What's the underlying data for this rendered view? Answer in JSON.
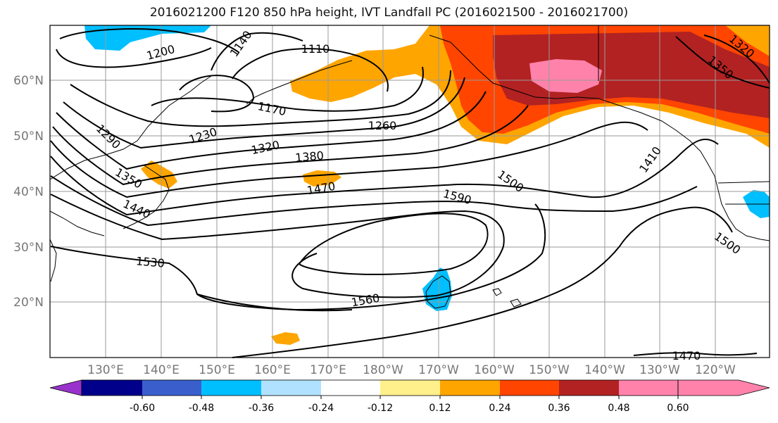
{
  "title": "2016021200 F120 850 hPa height, IVT Landfall PC (2016021500 - 2016021700)",
  "lat_labels": [
    "60°N",
    "50°N",
    "40°N",
    "30°N",
    "20°N"
  ],
  "lon_labels": [
    "130°E",
    "140°E",
    "150°E",
    "160°E",
    "170°E",
    "180°W",
    "170°W",
    "160°W",
    "150°W",
    "140°W",
    "130°W",
    "120°W"
  ],
  "colorbar": {
    "ticks": [
      "-0.60",
      "-0.48",
      "-0.36",
      "-0.24",
      "-0.12",
      "0.12",
      "0.24",
      "0.36",
      "0.48",
      "0.60"
    ],
    "colors": [
      "#9932cc",
      "#00008b",
      "#3a5fcd",
      "#00bfff",
      "#b0e2ff",
      "#ffffff",
      "#fff08c",
      "#ffa500",
      "#ff4500",
      "#b22222",
      "#ff82ab"
    ]
  },
  "contour_labels": [
    {
      "text": "1200"
    },
    {
      "text": "1140"
    },
    {
      "text": "1110"
    },
    {
      "text": "1170"
    },
    {
      "text": "1230"
    },
    {
      "text": "1260"
    },
    {
      "text": "1290"
    },
    {
      "text": "1320"
    },
    {
      "text": "1350"
    },
    {
      "text": "1380"
    },
    {
      "text": "1410"
    },
    {
      "text": "1440"
    },
    {
      "text": "1470"
    },
    {
      "text": "1500"
    },
    {
      "text": "1590"
    },
    {
      "text": "1530"
    },
    {
      "text": "1560"
    },
    {
      "text": "1500"
    },
    {
      "text": "1470"
    },
    {
      "text": "1320"
    },
    {
      "text": "1350"
    }
  ]
}
